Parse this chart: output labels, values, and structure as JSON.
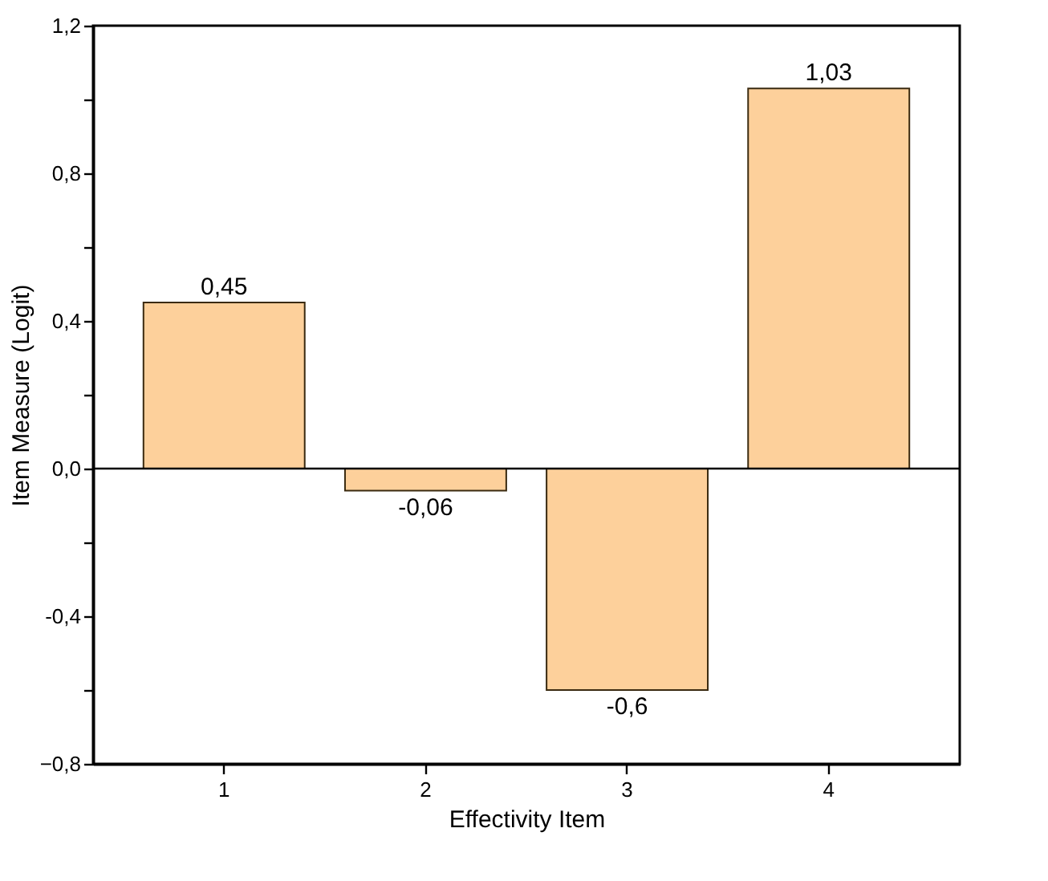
{
  "chart_data": {
    "type": "bar",
    "categories": [
      "1",
      "2",
      "3",
      "4"
    ],
    "values": [
      0.45,
      -0.06,
      -0.6,
      1.03
    ],
    "value_labels": [
      "0,45",
      "-0,06",
      "-0,6",
      "1,03"
    ],
    "color": "#fdd09b",
    "xlabel": "Effectivity Item",
    "ylabel": "Item Measure (Logit)",
    "ylim": [
      -0.8,
      1.2
    ],
    "yticks": [
      {
        "value": -0.8,
        "label": "−0,8"
      },
      {
        "value": -0.6,
        "label": null
      },
      {
        "value": -0.4,
        "label": "-0,4"
      },
      {
        "value": -0.2,
        "label": null
      },
      {
        "value": 0.0,
        "label": "0,0"
      },
      {
        "value": 0.2,
        "label": null
      },
      {
        "value": 0.4,
        "label": "0,4"
      },
      {
        "value": 0.6,
        "label": null
      },
      {
        "value": 0.8,
        "label": "0,8"
      },
      {
        "value": 1.0,
        "label": null
      },
      {
        "value": 1.2,
        "label": "1,2"
      }
    ],
    "ref_lines": [
      {
        "axis": "y",
        "value": 0.0,
        "color": "#000000"
      }
    ],
    "grid": false
  }
}
